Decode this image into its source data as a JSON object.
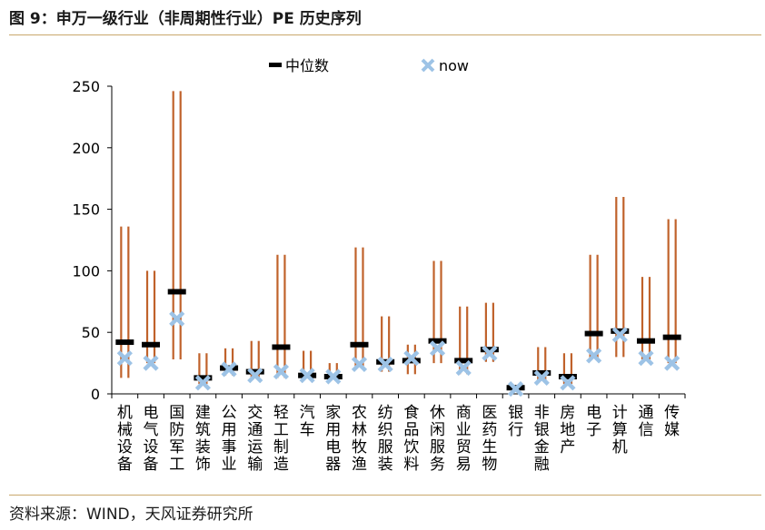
{
  "figure_title": "图 9：申万一级行业（非周期性行业）PE 历史序列",
  "source": "资料来源：WIND，天风证券研究所",
  "colors": {
    "range": "#c0622b",
    "median": "#000000",
    "now": "#9dc3e6",
    "rule": "#c9a86b"
  },
  "chart_data": {
    "type": "range-dot",
    "title": "",
    "xlabel": "",
    "ylabel": "",
    "ylim": [
      0,
      250
    ],
    "yticks": [
      0,
      50,
      100,
      150,
      200,
      250
    ],
    "legend": {
      "position": "top",
      "median_label": "中位数",
      "now_label": "now"
    },
    "categories": [
      "机械设备",
      "电气设备",
      "国防军工",
      "建筑装饰",
      "公用事业",
      "交通运输",
      "轻工制造",
      "汽车",
      "家用电器",
      "农林牧渔",
      "纺织服装",
      "食品饮料",
      "休闲服务",
      "商业贸易",
      "医药生物",
      "银行",
      "非银金融",
      "房地产",
      "电子",
      "计算机",
      "通信",
      "传媒"
    ],
    "max": [
      136,
      100,
      246,
      33,
      37,
      43,
      113,
      35,
      25,
      119,
      63,
      40,
      108,
      71,
      74,
      6,
      38,
      33,
      113,
      160,
      95,
      142
    ],
    "min": [
      13,
      25,
      28,
      8,
      15,
      12,
      13,
      14,
      12,
      20,
      18,
      16,
      25,
      16,
      26,
      3,
      10,
      8,
      28,
      30,
      28,
      25
    ],
    "median": [
      42,
      40,
      83,
      13,
      21,
      18,
      38,
      15,
      14,
      40,
      26,
      27,
      43,
      27,
      36,
      5,
      17,
      14,
      49,
      51,
      43,
      46
    ],
    "now": [
      29,
      25,
      61,
      9,
      20,
      15,
      18,
      15,
      14,
      24,
      24,
      29,
      37,
      21,
      33,
      4,
      13,
      9,
      31,
      48,
      29,
      25
    ]
  }
}
